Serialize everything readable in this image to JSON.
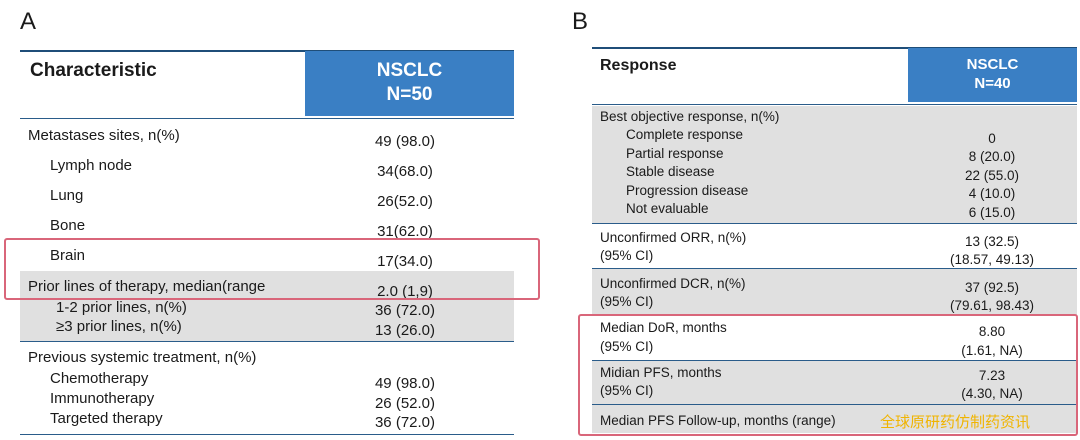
{
  "panelA": {
    "letter": "A",
    "header": {
      "characteristic": "Characteristic",
      "group_line1": "NSCLC",
      "group_line2": "N=50"
    },
    "rows": [
      {
        "label": "Metastases sites, n(%)",
        "value": "49 (98.0)"
      },
      {
        "label": "Lymph node",
        "value": "34(68.0)"
      },
      {
        "label": "Lung",
        "value": "26(52.0)"
      },
      {
        "label": "Bone",
        "value": "31(62.0)"
      },
      {
        "label": "Brain",
        "value": "17(34.0)"
      },
      {
        "label": "Prior lines of therapy, median(range",
        "value": "2.0 (1,9)"
      },
      {
        "label": "1-2 prior lines, n(%)",
        "value": "36 (72.0)"
      },
      {
        "label": "≥3 prior lines, n(%)",
        "value": "13 (26.0)"
      },
      {
        "label": "Previous systemic treatment, n(%)",
        "value": ""
      },
      {
        "label": "Chemotherapy",
        "value": "49 (98.0)"
      },
      {
        "label": "Immunotherapy",
        "value": "26 (52.0)"
      },
      {
        "label": "Targeted therapy",
        "value": "36 (72.0)"
      }
    ]
  },
  "panelB": {
    "letter": "B",
    "header": {
      "response": "Response",
      "group_line1": "NSCLC",
      "group_line2": "N=40"
    },
    "best_response": {
      "title": "Best objective response, n(%)",
      "items": [
        {
          "label": "Complete response",
          "value": "0"
        },
        {
          "label": "Partial response",
          "value": "8 (20.0)"
        },
        {
          "label": "Stable disease",
          "value": "22 (55.0)"
        },
        {
          "label": "Progression disease",
          "value": "4 (10.0)"
        },
        {
          "label": "Not evaluable",
          "value": "6 (15.0)"
        }
      ]
    },
    "orr": {
      "label1": "Unconfirmed ORR, n(%)",
      "label2": "(95% CI)",
      "value1": "13 (32.5)",
      "value2": "(18.57, 49.13)"
    },
    "dcr": {
      "label1": "Unconfirmed DCR, n(%)",
      "label2": "(95% CI)",
      "value1": "37 (92.5)",
      "value2": "(79.61, 98.43)"
    },
    "dor": {
      "label1": "Median DoR, months",
      "label2": "(95% CI)",
      "value1": "8.80",
      "value2": "(1.61, NA)"
    },
    "pfs": {
      "label1": "Midian PFS, months",
      "label2": "(95% CI)",
      "value1": "7.23",
      "value2": "(4.30, NA)"
    },
    "followup": {
      "label": "Median PFS Follow-up, months (range)"
    }
  },
  "watermark": "全球原研药仿制药资讯",
  "colors": {
    "header_blue": "#3a7fc4",
    "rule_blue": "#2a5c8a",
    "row_gray": "#e0e0e0",
    "highlight_red": "#d9667a",
    "watermark": "#f0b400"
  }
}
